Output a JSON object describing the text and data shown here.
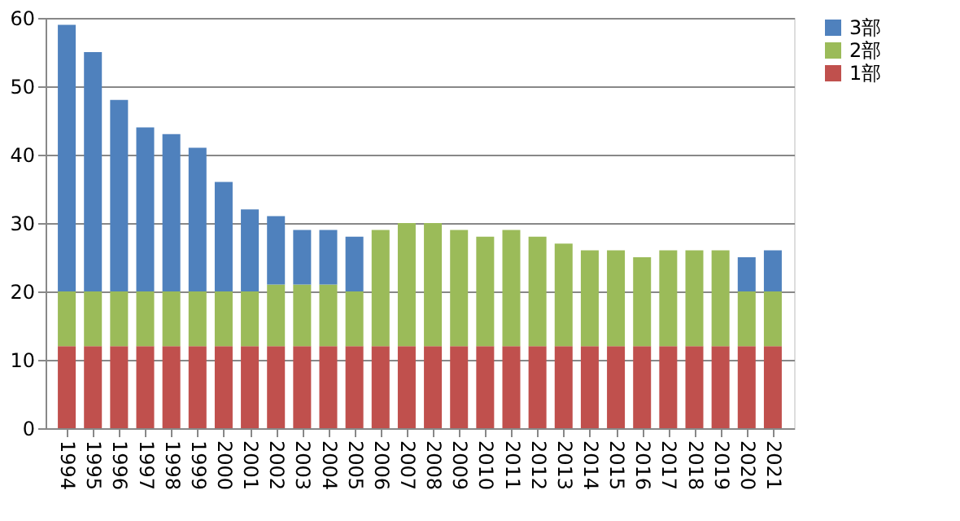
{
  "chart_data": {
    "type": "bar",
    "stacked": true,
    "categories": [
      "1994",
      "1995",
      "1996",
      "1997",
      "1998",
      "1999",
      "2000",
      "2001",
      "2002",
      "2003",
      "2004",
      "2005",
      "2006",
      "2007",
      "2008",
      "2009",
      "2010",
      "2011",
      "2012",
      "2013",
      "2014",
      "2015",
      "2016",
      "2017",
      "2018",
      "2019",
      "2020",
      "2021"
    ],
    "series": [
      {
        "name": "1部",
        "color": "#c0504d",
        "values": [
          12,
          12,
          12,
          12,
          12,
          12,
          12,
          12,
          12,
          12,
          12,
          12,
          12,
          12,
          12,
          12,
          12,
          12,
          12,
          12,
          12,
          12,
          12,
          12,
          12,
          12,
          12,
          12
        ]
      },
      {
        "name": "2部",
        "color": "#9bbb59",
        "values": [
          8,
          8,
          8,
          8,
          8,
          8,
          8,
          8,
          9,
          9,
          9,
          8,
          17,
          18,
          18,
          17,
          16,
          17,
          16,
          15,
          14,
          14,
          13,
          14,
          14,
          14,
          8,
          8
        ]
      },
      {
        "name": "3部",
        "color": "#4f81bd",
        "values": [
          39,
          35,
          28,
          24,
          23,
          21,
          16,
          12,
          10,
          8,
          8,
          8,
          null,
          null,
          null,
          null,
          null,
          null,
          null,
          null,
          null,
          null,
          null,
          null,
          null,
          null,
          5,
          6
        ]
      }
    ],
    "ylim": [
      0,
      60
    ],
    "yticks": [
      0,
      10,
      20,
      30,
      40,
      50,
      60
    ],
    "grid": "y",
    "legend": "right"
  }
}
